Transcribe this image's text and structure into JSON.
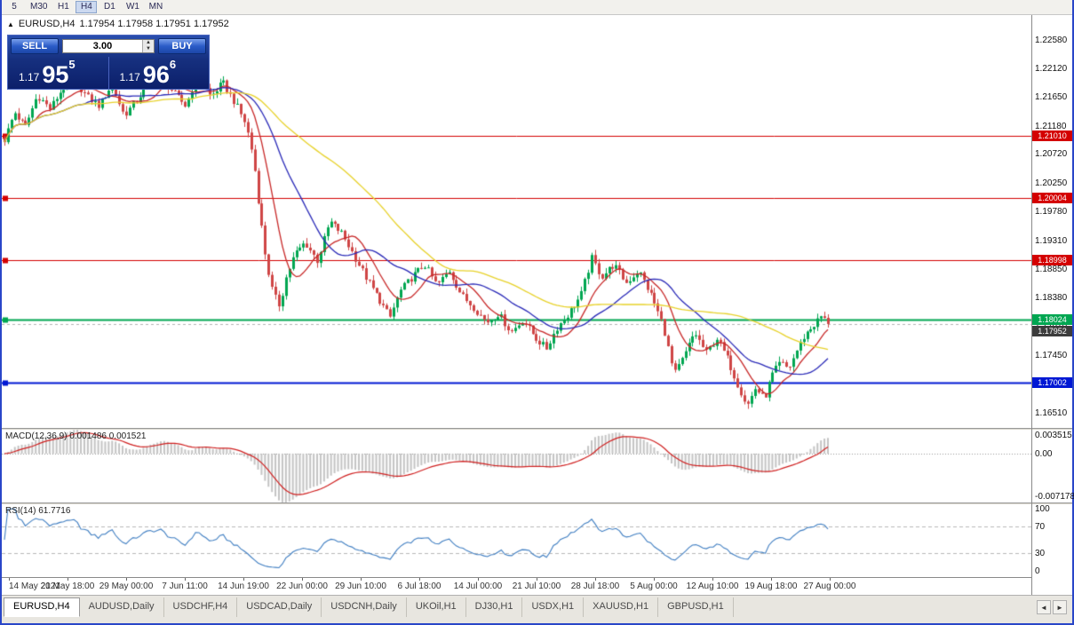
{
  "toolbar": {
    "timeframes": [
      "5",
      "M30",
      "H1",
      "H4",
      "D1",
      "W1",
      "MN"
    ],
    "active": "H4"
  },
  "chart": {
    "collapse_icon": "▲",
    "title_symbol": "EURUSD,H4",
    "title_ohlc": "1.17954 1.17958 1.17951 1.17952"
  },
  "trade": {
    "sell_label": "SELL",
    "buy_label": "BUY",
    "volume": "3.00",
    "spin_up": "▲",
    "spin_down": "▼",
    "sell_price": {
      "prefix": "1.17",
      "big": "95",
      "sup": "5"
    },
    "buy_price": {
      "prefix": "1.17",
      "big": "96",
      "sup": "6"
    }
  },
  "price_axis_ticks": [
    "1.22580",
    "1.22120",
    "1.21650",
    "1.21180",
    "1.20720",
    "1.20250",
    "1.19780",
    "1.19310",
    "1.18850",
    "1.18380",
    "1.17910",
    "1.17450",
    "1.16980",
    "1.16510"
  ],
  "macd": {
    "label": "MACD(12,36,9) 0.001486 0.001521",
    "axis_labels": [
      "0.003515",
      "0.00",
      "-0.007178"
    ]
  },
  "rsi": {
    "label": "RSI(14) 61.7716",
    "axis_labels": [
      "100",
      "70",
      "30",
      "0"
    ]
  },
  "time_labels": [
    "14 May 2021",
    "21 May 18:00",
    "29 May 00:00",
    "7 Jun 11:00",
    "14 Jun 19:00",
    "22 Jun 00:00",
    "29 Jun 10:00",
    "6 Jul 18:00",
    "14 Jul 00:00",
    "21 Jul 10:00",
    "28 Jul 18:00",
    "5 Aug 00:00",
    "12 Aug 10:00",
    "19 Aug 18:00",
    "27 Aug 00:00"
  ],
  "tabs": [
    "EURUSD,H4",
    "AUDUSD,Daily",
    "USDCHF,H4",
    "USDCAD,Daily",
    "USDCNH,Daily",
    "UKOil,H1",
    "DJ30,H1",
    "USDX,H1",
    "XAUUSD,H1",
    "GBPUSD,H1"
  ],
  "active_tab": "EURUSD,H4",
  "tab_scroll": {
    "left": "◄",
    "right": "►"
  },
  "chart_data": {
    "type": "candlestick",
    "symbol": "EURUSD",
    "timeframe": "H4",
    "price_min": 1.1626,
    "price_max": 1.2298,
    "candle_count": 238,
    "last_close": 1.17952,
    "candle_up_color": "#00a651",
    "candle_down_color": "#cf4545",
    "price_path": [
      [
        0,
        1.2095
      ],
      [
        1.2,
        1.214
      ],
      [
        2.5,
        1.2115
      ],
      [
        4,
        1.2168
      ],
      [
        5.5,
        1.2145
      ],
      [
        7,
        1.2178
      ],
      [
        8.5,
        1.2192
      ],
      [
        10,
        1.2165
      ],
      [
        11.5,
        1.215
      ],
      [
        13,
        1.2185
      ],
      [
        14.5,
        1.2135
      ],
      [
        16,
        1.2158
      ],
      [
        17.5,
        1.2188
      ],
      [
        19,
        1.2197
      ],
      [
        20.5,
        1.2172
      ],
      [
        22,
        1.215
      ],
      [
        23.5,
        1.2202
      ],
      [
        25,
        1.2165
      ],
      [
        26.5,
        1.2188
      ],
      [
        28,
        1.2155
      ],
      [
        29.3,
        1.212
      ],
      [
        30.2,
        1.2065
      ],
      [
        31,
        1.1975
      ],
      [
        31.8,
        1.1895
      ],
      [
        32.6,
        1.1845
      ],
      [
        33.4,
        1.1825
      ],
      [
        34.2,
        1.1872
      ],
      [
        35.2,
        1.1908
      ],
      [
        36.5,
        1.1928
      ],
      [
        38,
        1.1898
      ],
      [
        39.5,
        1.1962
      ],
      [
        41,
        1.1942
      ],
      [
        42.5,
        1.1905
      ],
      [
        44,
        1.1868
      ],
      [
        45.5,
        1.1835
      ],
      [
        46.8,
        1.1805
      ],
      [
        48,
        1.1848
      ],
      [
        49.5,
        1.1872
      ],
      [
        51,
        1.1892
      ],
      [
        52.5,
        1.1858
      ],
      [
        54,
        1.1882
      ],
      [
        55.5,
        1.1842
      ],
      [
        57,
        1.1822
      ],
      [
        58.5,
        1.1798
      ],
      [
        60,
        1.1812
      ],
      [
        61.5,
        1.1782
      ],
      [
        63,
        1.1802
      ],
      [
        64.5,
        1.1772
      ],
      [
        65.8,
        1.1755
      ],
      [
        67,
        1.1788
      ],
      [
        68.5,
        1.1812
      ],
      [
        70,
        1.1842
      ],
      [
        71.3,
        1.1902
      ],
      [
        72.5,
        1.1872
      ],
      [
        74,
        1.1892
      ],
      [
        75.5,
        1.1862
      ],
      [
        77,
        1.1882
      ],
      [
        78.5,
        1.1842
      ],
      [
        80,
        1.1792
      ],
      [
        81.3,
        1.1712
      ],
      [
        82.5,
        1.1742
      ],
      [
        83.8,
        1.1782
      ],
      [
        85.2,
        1.1748
      ],
      [
        86.5,
        1.1772
      ],
      [
        87.8,
        1.1738
      ],
      [
        89,
        1.1698
      ],
      [
        90.2,
        1.1662
      ],
      [
        91.2,
        1.1692
      ],
      [
        92.2,
        1.1672
      ],
      [
        93.2,
        1.1712
      ],
      [
        94.2,
        1.1732
      ],
      [
        95.2,
        1.1722
      ],
      [
        96.2,
        1.1752
      ],
      [
        97.2,
        1.1778
      ],
      [
        98.2,
        1.1792
      ],
      [
        99.2,
        1.1808
      ],
      [
        100,
        1.17952
      ]
    ],
    "moving_averages": [
      {
        "name": "ma-fast",
        "period": 10,
        "color": "#c82828"
      },
      {
        "name": "ma-mid",
        "period": 24,
        "color": "#2a2ab8"
      },
      {
        "name": "ma-slow",
        "period": 55,
        "color": "#e8d22a"
      }
    ],
    "hlines": [
      {
        "price": 1.2101,
        "label": "1.21010",
        "color": "#d40000",
        "width": 1
      },
      {
        "price": 1.20004,
        "label": "1.20004",
        "color": "#d40000",
        "width": 1
      },
      {
        "price": 1.18998,
        "label": "1.18998",
        "color": "#d40000",
        "width": 1
      },
      {
        "price": 1.18024,
        "label": "1.18024",
        "color": "#00a651",
        "width": 2
      },
      {
        "price": 1.17002,
        "label": "1.17002",
        "color": "#0018d4",
        "width": 2
      }
    ],
    "current_price": {
      "value": 1.17952,
      "label": "1.17952",
      "color": "#3c3c3c"
    },
    "macd_scale": {
      "params": [
        12,
        36,
        9
      ],
      "max": 0.003515,
      "min": -0.007178,
      "hist_color": "#c4c4c4",
      "signal_color": "#d02020"
    },
    "rsi_scale": {
      "period": 14,
      "max": 100,
      "min": 0,
      "levels": [
        70,
        30
      ],
      "line_color": "#3f7ec2",
      "level_color": "#b8b8b8"
    }
  }
}
